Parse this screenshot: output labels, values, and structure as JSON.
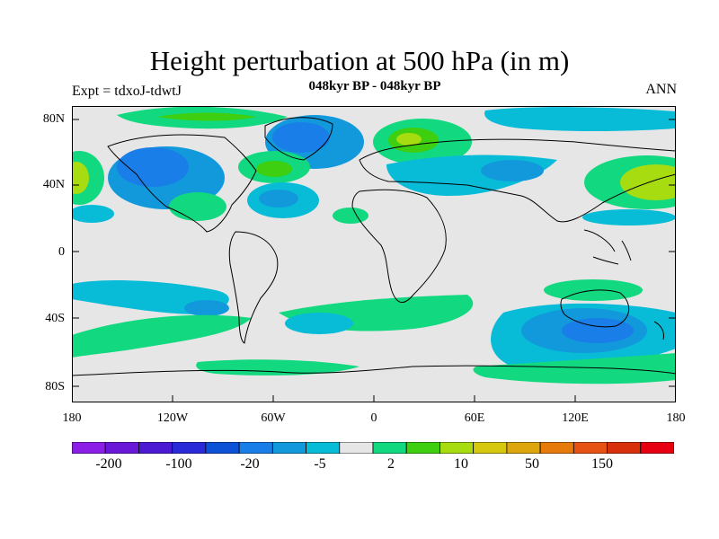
{
  "header": {
    "title": "Height perturbation at 500 hPa (in m)",
    "subtitle": "048kyr BP - 048kyr BP",
    "left_label": "Expt = tdxoJ-tdwtJ",
    "right_label": "ANN"
  },
  "axes": {
    "lat_labels": [
      "80N",
      "40N",
      "0",
      "40S",
      "80S"
    ],
    "lon_labels": [
      "180",
      "120W",
      "60W",
      "0",
      "60E",
      "120E",
      "180"
    ]
  },
  "colors": {
    "no_change": "#e6e6e6",
    "coastline": "#000000",
    "colorbar_colors": [
      "#8c1fe6",
      "#6a18d8",
      "#4c1ad3",
      "#2b2ad8",
      "#0b52d6",
      "#1a7ee8",
      "#1299dc",
      "#08bcd8",
      "#e6e6e6",
      "#12d880",
      "#3dcf10",
      "#a6dc10",
      "#d6c80e",
      "#dca60c",
      "#e67a0a",
      "#e65214",
      "#d8300a",
      "#e60012"
    ]
  },
  "colorbar": {
    "labels": [
      "-200",
      "-100",
      "-20",
      "-5",
      "2",
      "10",
      "50",
      "150"
    ]
  }
}
